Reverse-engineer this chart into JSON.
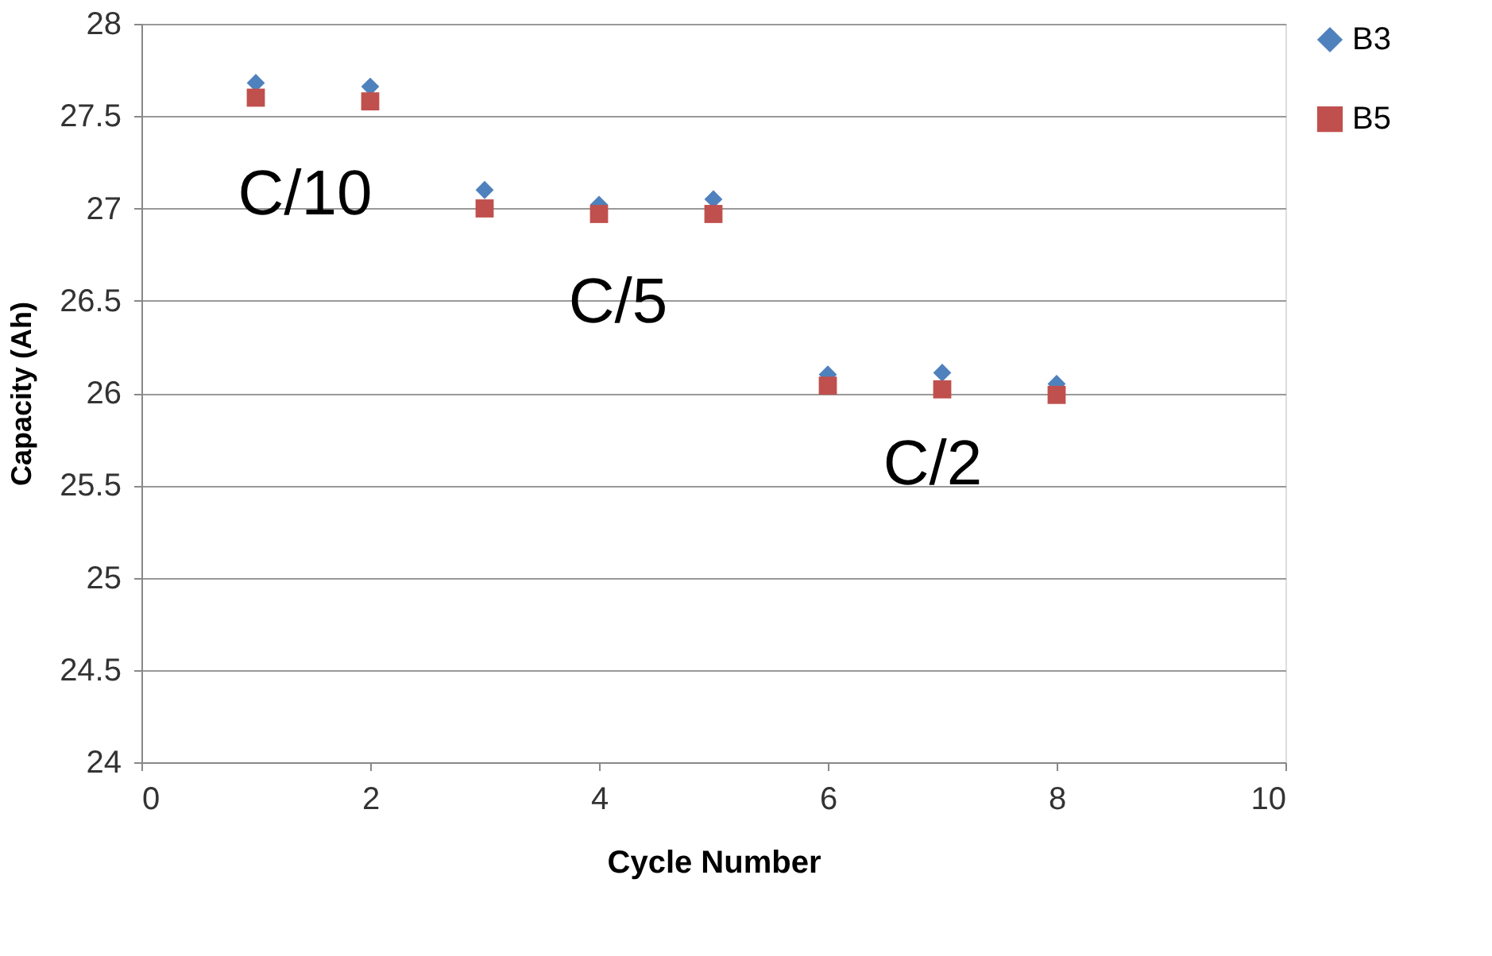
{
  "chart_data": {
    "type": "scatter",
    "xlabel": "Cycle Number",
    "ylabel": "Capacity (Ah)",
    "x": [
      1,
      2,
      3,
      4,
      5,
      6,
      7,
      8
    ],
    "series": [
      {
        "name": "B3",
        "color": "#4f81bd",
        "marker": "diamond",
        "values": [
          27.68,
          27.66,
          27.1,
          27.02,
          27.05,
          26.1,
          26.11,
          26.05
        ]
      },
      {
        "name": "B5",
        "color": "#c0504d",
        "marker": "square",
        "values": [
          27.6,
          27.58,
          27.0,
          26.97,
          26.97,
          26.04,
          26.02,
          25.99
        ]
      }
    ],
    "xlim": [
      0,
      10
    ],
    "xticks": [
      0,
      2,
      4,
      6,
      8,
      10
    ],
    "ylim": [
      24,
      28
    ],
    "yticks": [
      24,
      24.5,
      25,
      25.5,
      26,
      26.5,
      27,
      27.5,
      28
    ],
    "grid": "y",
    "legend": "right",
    "annotations": [
      "C/10",
      "C/5",
      "C/2"
    ]
  }
}
